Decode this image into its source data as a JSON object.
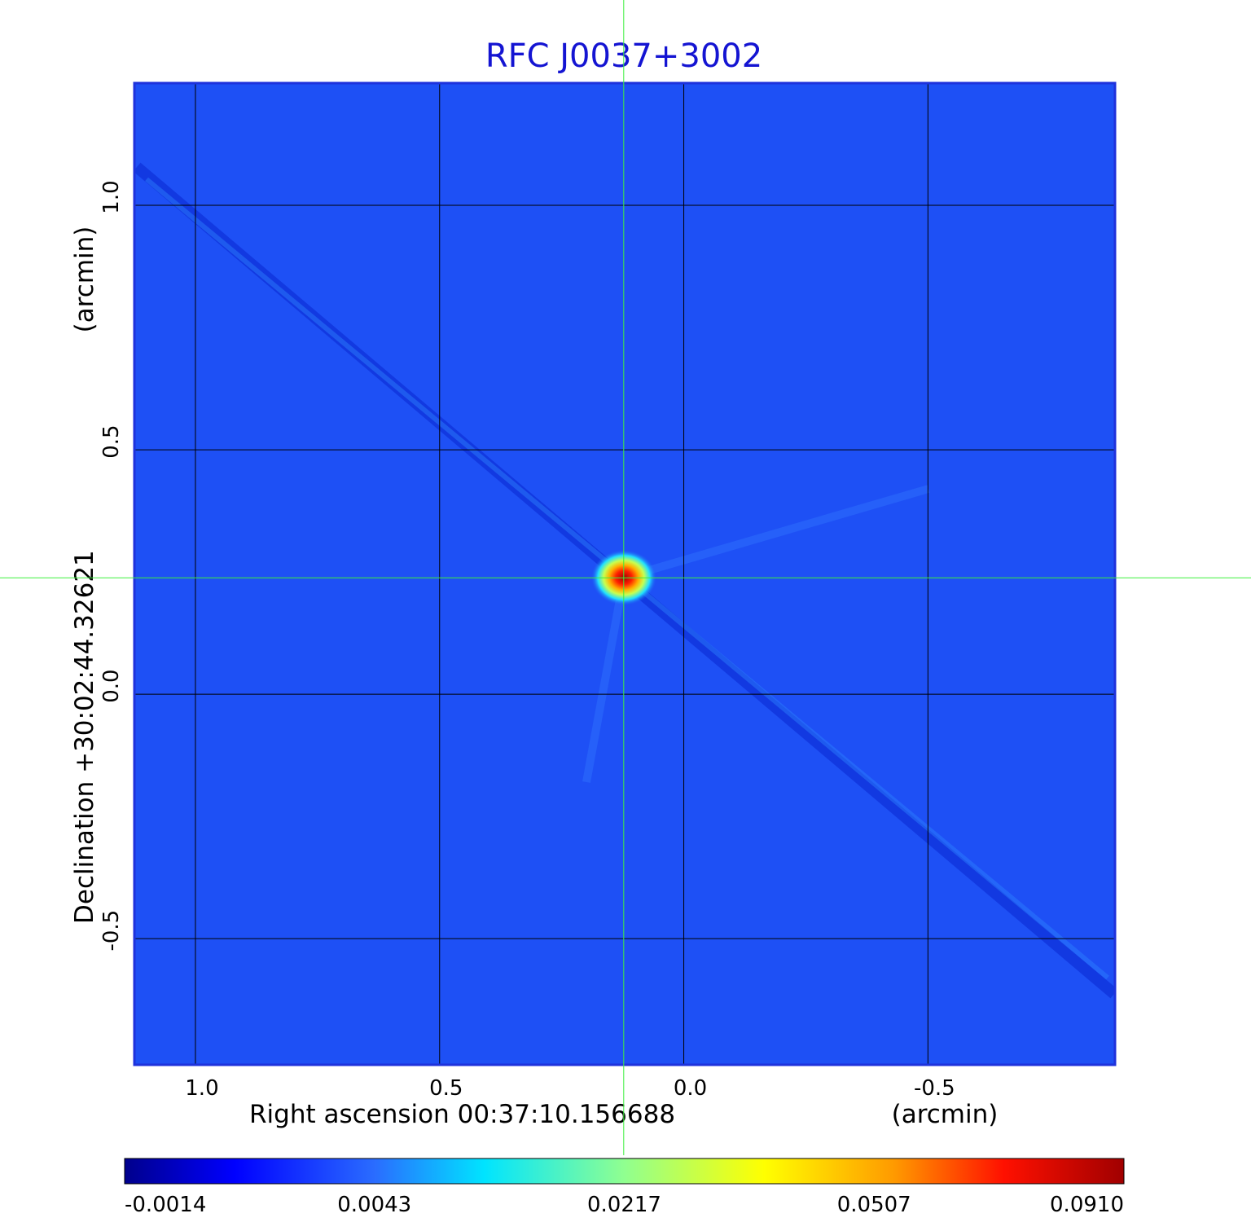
{
  "chart_data": {
    "type": "heatmap",
    "title": "RFC J0037+3002",
    "xlabel": "Right ascension  00:37:10.156688",
    "xunit": "(arcmin)",
    "ylabel": "Declination  +30:02:44.32621",
    "yunit": "(arcmin)",
    "x_ticks": [
      "1.0",
      "0.5",
      "0.0",
      "-0.5"
    ],
    "y_ticks": [
      "1.0",
      "0.5",
      "0.0",
      "-0.5"
    ],
    "x_tick_values": [
      1.0,
      0.5,
      0.0,
      -0.5
    ],
    "y_tick_values": [
      1.0,
      0.5,
      0.0,
      -0.5
    ],
    "xlim": [
      1.125,
      -0.883
    ],
    "ylim": [
      -0.758,
      1.25
    ],
    "grid": true,
    "crosshair": {
      "x": 0.123,
      "y": 0.238
    },
    "peak": {
      "x": 0.12,
      "y": 0.238,
      "value": 0.091
    },
    "colorbar": {
      "tick_labels": [
        "-0.0014",
        "0.0043",
        "0.0217",
        "0.0507",
        "0.0910"
      ],
      "colormap": "jet"
    },
    "colors": {
      "title": "#1414d2",
      "background_map": "#1e50f5",
      "grid": "#000000",
      "crosshair": "#3cf03c",
      "frame": "#1e32dc"
    }
  }
}
